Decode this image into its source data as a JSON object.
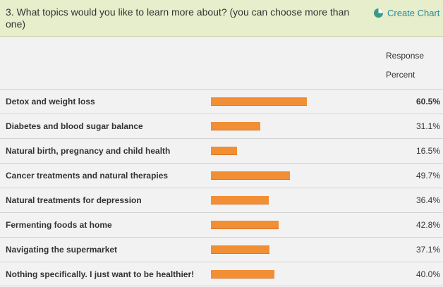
{
  "question": {
    "title": "3. What topics would you like to learn more about? (you can choose more than one)",
    "create_chart_label": "Create Chart",
    "create_chart_icon": "pie-chart-icon"
  },
  "table": {
    "column_header_line1": "Response",
    "column_header_line2": "Percent",
    "rows": [
      {
        "label": "Detox and weight loss",
        "percent_text": "60.5%",
        "value": 60.5,
        "max": true
      },
      {
        "label": "Diabetes and blood sugar balance",
        "percent_text": "31.1%",
        "value": 31.1,
        "max": false
      },
      {
        "label": "Natural birth, pregnancy and child health",
        "percent_text": "16.5%",
        "value": 16.5,
        "max": false
      },
      {
        "label": "Cancer treatments and natural therapies",
        "percent_text": "49.7%",
        "value": 49.7,
        "max": false
      },
      {
        "label": "Natural treatments for depression",
        "percent_text": "36.4%",
        "value": 36.4,
        "max": false
      },
      {
        "label": "Fermenting foods at home",
        "percent_text": "42.8%",
        "value": 42.8,
        "max": false
      },
      {
        "label": "Navigating the supermarket",
        "percent_text": "37.1%",
        "value": 37.1,
        "max": false
      },
      {
        "label": "Nothing specifically. I just want to be healthier!",
        "percent_text": "40.0%",
        "value": 40.0,
        "max": false
      }
    ]
  },
  "colors": {
    "bar": "#f28e34",
    "header_bg": "#e6eecb",
    "link": "#2a8aa0"
  }
}
